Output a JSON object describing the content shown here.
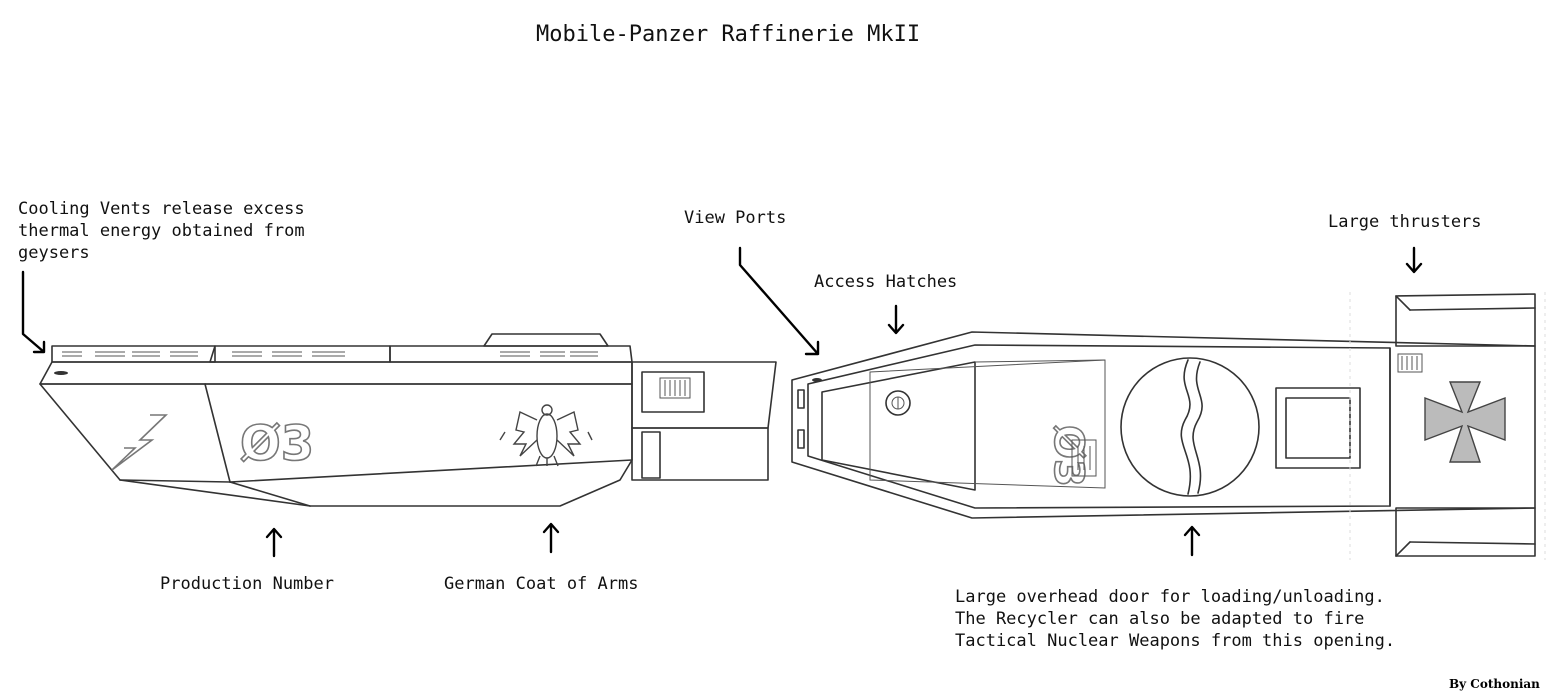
{
  "title": "Mobile-Panzer Raffinerie MkII",
  "annotations": {
    "cooling_vents": "Cooling Vents release excess\nthermal energy obtained from\ngeysers",
    "view_ports": "View Ports",
    "access_hatches": "Access Hatches",
    "large_thrusters": "Large thrusters",
    "production_number": "Production Number",
    "coat_of_arms": "German Coat of Arms",
    "overhead_door": "Large overhead door for loading/unloading.\nThe Recycler can also be adapted to fire\nTactical Nuclear Weapons from this opening."
  },
  "hull_marking": "Ø3",
  "credit": "By Cothonian",
  "colors": {
    "line": "#333333",
    "text": "#111111",
    "background": "#ffffff"
  },
  "icons": [
    "lightning-bolt-insignia",
    "eagle-coat-of-arms-icon",
    "iron-cross-icon"
  ]
}
